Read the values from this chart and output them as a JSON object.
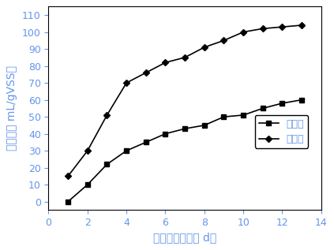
{
  "x_control": [
    1,
    2,
    3,
    4,
    5,
    6,
    7,
    8,
    9,
    10,
    11,
    12,
    13
  ],
  "y_control": [
    0,
    10,
    22,
    30,
    35,
    40,
    43,
    45,
    50,
    51,
    55,
    58,
    60
  ],
  "x_experiment": [
    1,
    2,
    3,
    4,
    5,
    6,
    7,
    8,
    9,
    10,
    11,
    12,
    13
  ],
  "y_experiment": [
    15,
    30,
    51,
    70,
    76,
    82,
    85,
    91,
    95,
    100,
    102,
    103,
    104
  ],
  "xlabel": "厂氧消化时间（ d）",
  "ylabel": "产气量（ mL/gVSS）",
  "xlim": [
    0,
    14
  ],
  "ylim": [
    -5,
    115
  ],
  "xticks": [
    0,
    2,
    4,
    6,
    8,
    10,
    12,
    14
  ],
  "yticks": [
    0,
    10,
    20,
    30,
    40,
    50,
    60,
    70,
    80,
    90,
    100,
    110
  ],
  "legend_control": "对照组",
  "legend_experiment": "试验组",
  "text_color": "#6495ED",
  "line_color": "#000000",
  "marker_control": "s",
  "marker_experiment": "D",
  "markersize": 4.5,
  "linewidth": 1.2,
  "label_fontsize": 10,
  "tick_fontsize": 9,
  "legend_fontsize": 9,
  "background_color": "#ffffff"
}
